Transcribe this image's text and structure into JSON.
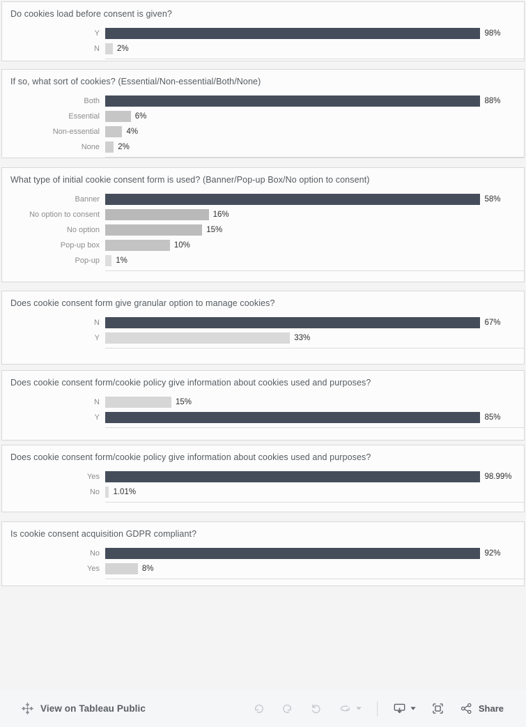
{
  "page": {
    "background": "#f4f4f4",
    "panel_background": "#fcfcfc",
    "panel_border": "#d8d8d8",
    "title_color": "#565b60",
    "category_label_color": "#8c8c8c",
    "value_label_color": "#2e2e2e",
    "dark_bar_color": "#454d5b"
  },
  "chart_data": [
    {
      "type": "bar",
      "orientation": "horizontal",
      "title": "Do cookies load before consent is given?",
      "categories": [
        "Y",
        "N"
      ],
      "values": [
        98,
        2
      ],
      "labels": [
        "98%",
        "2%"
      ],
      "bar_colors": [
        "#454d5b",
        "#d8d8d8"
      ],
      "scale": "bars scaled relative to max value",
      "grid": false,
      "legend": false
    },
    {
      "type": "bar",
      "orientation": "horizontal",
      "title": "If so, what sort of cookies? (Essential/Non-essential/Both/None)",
      "categories": [
        "Both",
        "Essential",
        "Non-essential",
        "None"
      ],
      "values": [
        88,
        6,
        4,
        2
      ],
      "labels": [
        "88%",
        "6%",
        "4%",
        "2%"
      ],
      "bar_colors": [
        "#454d5b",
        "#c6c6c6",
        "#c9c9c9",
        "#cfcfcf"
      ],
      "scale": "bars scaled relative to max value",
      "grid": false,
      "legend": false
    },
    {
      "type": "bar",
      "orientation": "horizontal",
      "title": "What type of initial cookie consent form is used? (Banner/Pop-up Box/No option to consent)",
      "categories": [
        "Banner",
        "No option to consent",
        "No option",
        "Pop-up box",
        "Pop-up"
      ],
      "values": [
        58,
        16,
        15,
        10,
        1
      ],
      "labels": [
        "58%",
        "16%",
        "15%",
        "10%",
        "1%"
      ],
      "bar_colors": [
        "#454d5b",
        "#b9b9b9",
        "#bcbcbc",
        "#c3c3c3",
        "#dedede"
      ],
      "scale": "bars scaled relative to max value",
      "grid": false,
      "legend": false
    },
    {
      "type": "bar",
      "orientation": "horizontal",
      "title": "Does cookie consent form give granular option to manage cookies?",
      "categories": [
        "N",
        "Y"
      ],
      "values": [
        67,
        33
      ],
      "labels": [
        "67%",
        "33%"
      ],
      "bar_colors": [
        "#454d5b",
        "#d9d9d9"
      ],
      "scale": "bars scaled relative to max value",
      "grid": false,
      "legend": false
    },
    {
      "type": "bar",
      "orientation": "horizontal",
      "title": "Does cookie consent form/cookie policy give information about cookies used and purposes?",
      "categories": [
        "N",
        "Y"
      ],
      "values": [
        15,
        85
      ],
      "labels": [
        "15%",
        "85%"
      ],
      "bar_colors": [
        "#d6d6d6",
        "#454d5b"
      ],
      "scale": "bars scaled relative to max value",
      "grid": false,
      "legend": false
    },
    {
      "type": "bar",
      "orientation": "horizontal",
      "title": "Does cookie consent form/cookie policy give information about cookies used and purposes?",
      "categories": [
        "Yes",
        "No"
      ],
      "values": [
        98.99,
        1.01
      ],
      "labels": [
        "98.99%",
        "1.01%"
      ],
      "bar_colors": [
        "#454d5b",
        "#dcdcdc"
      ],
      "scale": "bars scaled relative to max value",
      "grid": false,
      "legend": false
    },
    {
      "type": "bar",
      "orientation": "horizontal",
      "title": "Is cookie consent acquisition GDPR compliant?",
      "categories": [
        "No",
        "Yes"
      ],
      "values": [
        92,
        8
      ],
      "labels": [
        "92%",
        "8%"
      ],
      "bar_colors": [
        "#454d5b",
        "#d4d4d4"
      ],
      "scale": "bars scaled relative to max value",
      "grid": false,
      "legend": false
    }
  ],
  "toolbar": {
    "view_link_label": "View on Tableau Public",
    "share_label": "Share",
    "icons": [
      "tableau-logo",
      "undo",
      "redo",
      "reset",
      "refresh",
      "caret-down",
      "download",
      "caret-down",
      "fullscreen",
      "share"
    ]
  }
}
